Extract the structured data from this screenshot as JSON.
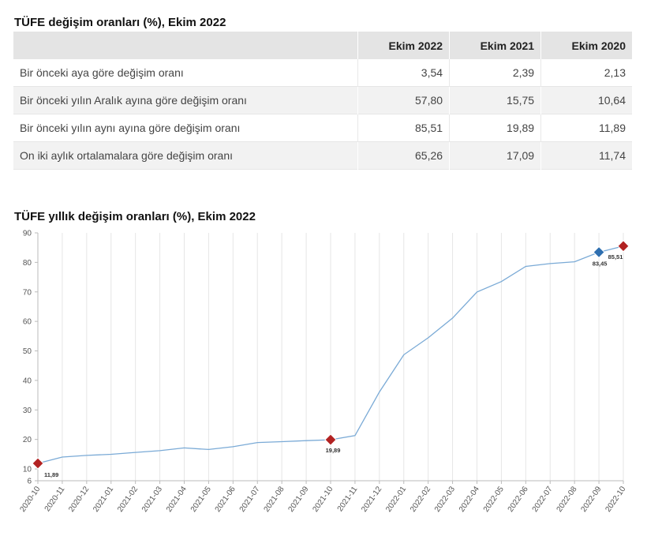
{
  "table_title": "TÜFE değişim oranları (%), Ekim 2022",
  "table": {
    "headers": [
      "",
      "Ekim 2022",
      "Ekim 2021",
      "Ekim 2020"
    ],
    "rows": [
      [
        "Bir önceki aya göre değişim oranı",
        "3,54",
        "2,39",
        "2,13"
      ],
      [
        "Bir önceki yılın Aralık ayına göre değişim oranı",
        "57,80",
        "15,75",
        "10,64"
      ],
      [
        "Bir önceki yılın aynı ayına göre değişim oranı",
        "85,51",
        "19,89",
        "11,89"
      ],
      [
        "On iki aylık ortalamalara göre değişim oranı",
        "65,26",
        "17,09",
        "11,74"
      ]
    ]
  },
  "chart_data": {
    "type": "line",
    "title": "TÜFE yıllık değişim oranları (%), Ekim 2022",
    "xlabel": "",
    "ylabel": "",
    "ylim": [
      6,
      90
    ],
    "y_ticks": [
      6,
      10,
      20,
      30,
      40,
      50,
      60,
      70,
      80,
      90
    ],
    "grid": "vertical",
    "x": [
      "2020-10",
      "2020-11",
      "2020-12",
      "2021-01",
      "2021-02",
      "2021-03",
      "2021-04",
      "2021-05",
      "2021-06",
      "2021-07",
      "2021-08",
      "2021-09",
      "2021-10",
      "2021-11",
      "2021-12",
      "2022-01",
      "2022-02",
      "2022-03",
      "2022-04",
      "2022-05",
      "2022-06",
      "2022-07",
      "2022-08",
      "2022-09",
      "2022-10"
    ],
    "series": [
      {
        "values": [
          11.89,
          14.03,
          14.6,
          14.97,
          15.61,
          16.19,
          17.14,
          16.59,
          17.53,
          18.95,
          19.25,
          19.58,
          19.89,
          21.31,
          36.08,
          48.69,
          54.44,
          61.14,
          69.97,
          73.5,
          78.62,
          79.6,
          80.21,
          83.45,
          85.51
        ],
        "color": "#7aaad6"
      }
    ],
    "markers": [
      {
        "index": 0,
        "label": "11,89",
        "color": "#b22222"
      },
      {
        "index": 12,
        "label": "19,89",
        "color": "#b22222"
      },
      {
        "index": 23,
        "label": "83,45",
        "color": "#2e6fb0"
      },
      {
        "index": 24,
        "label": "85,51",
        "color": "#b22222"
      }
    ]
  }
}
